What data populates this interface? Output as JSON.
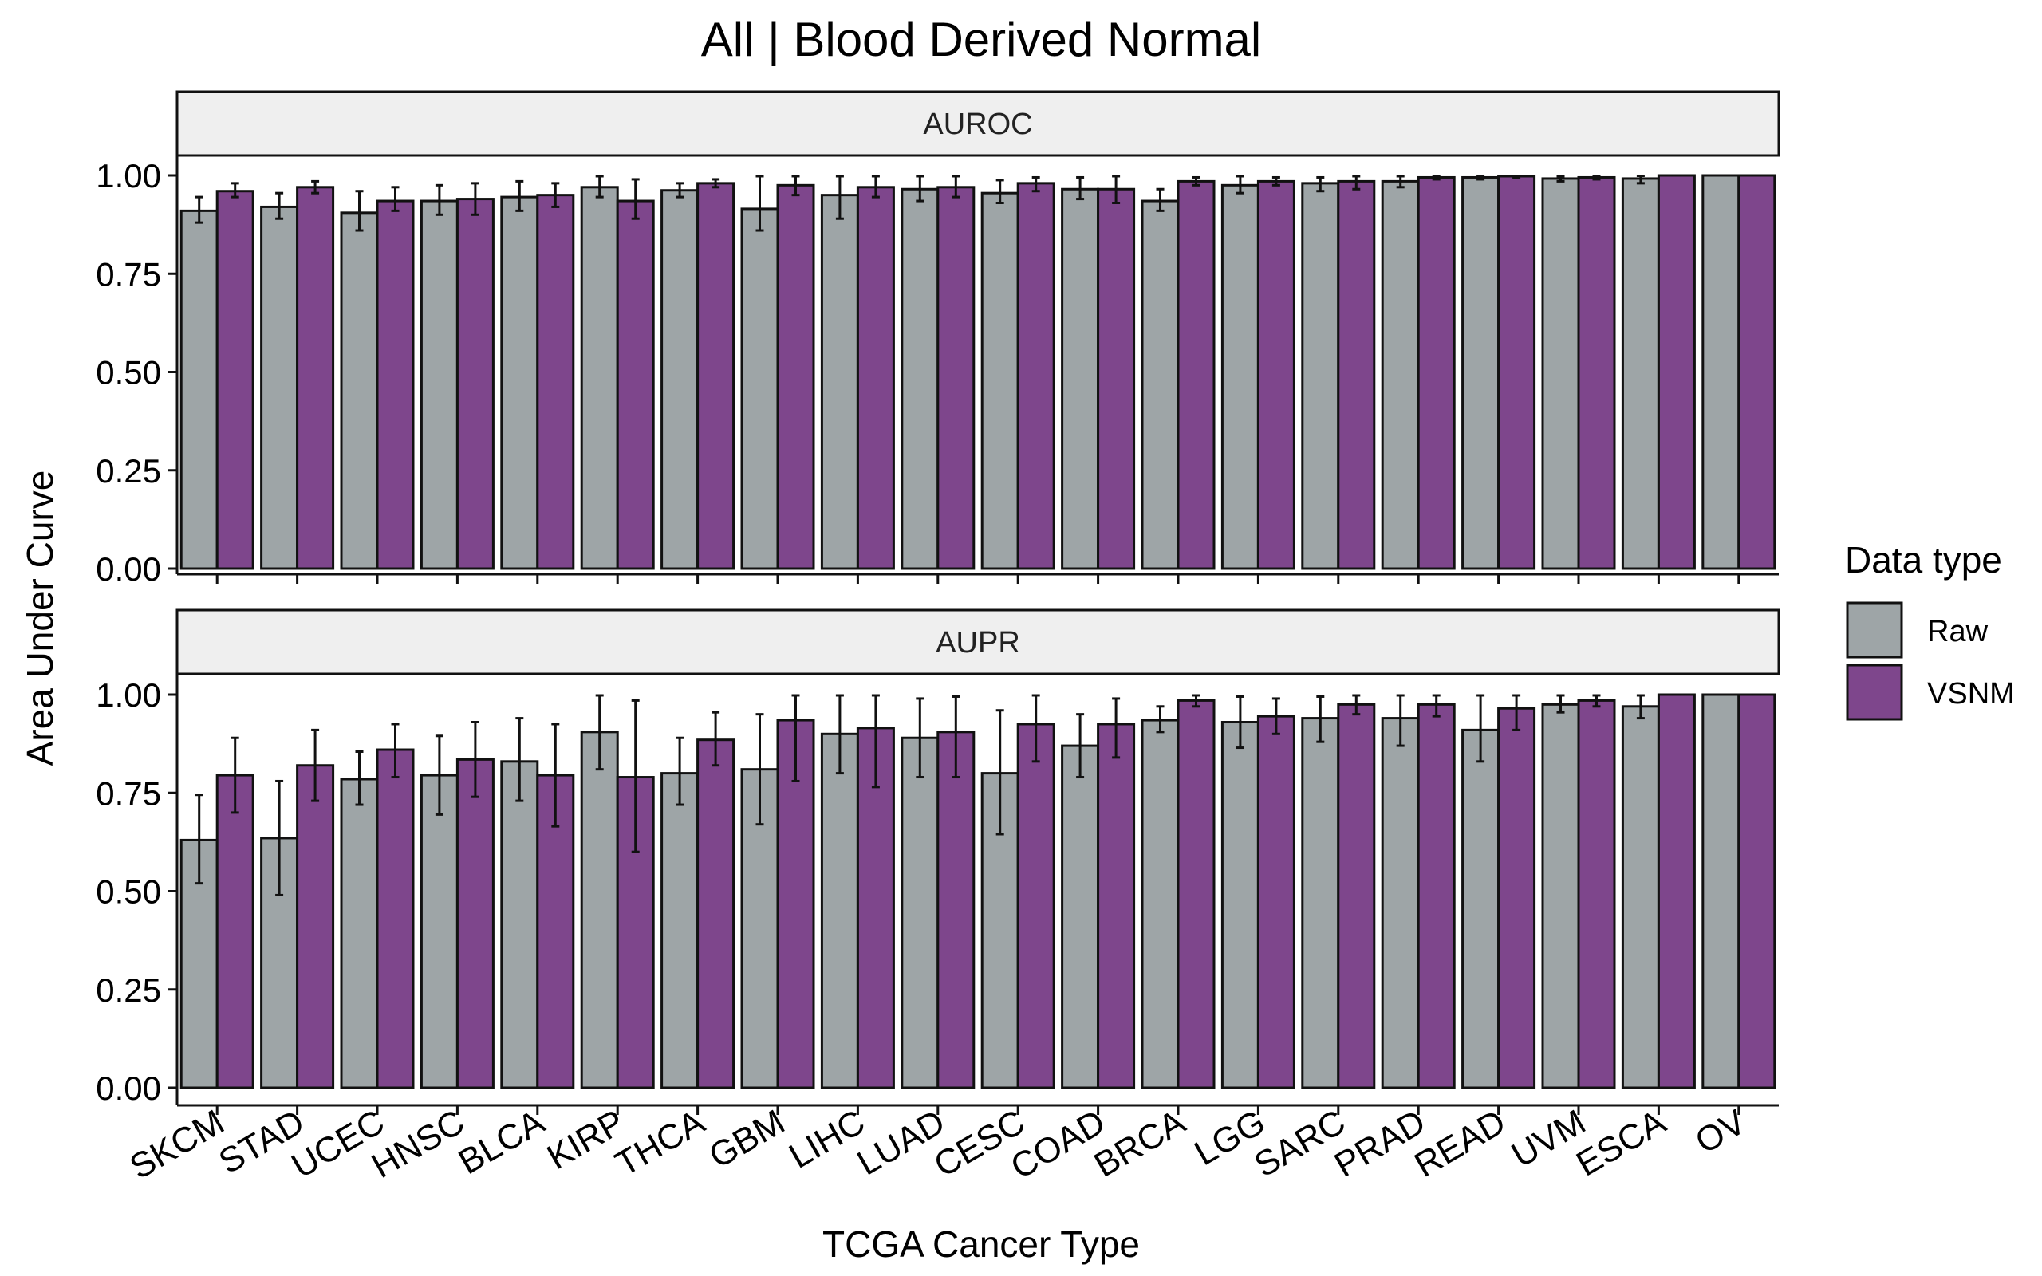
{
  "chart_data": {
    "type": "bar",
    "title": "All | Blood Derived Normal",
    "xlabel": "TCGA Cancer Type",
    "ylabel": "Area Under Curve",
    "ylim": [
      0,
      1.05
    ],
    "yticks": [
      "0.00",
      "0.25",
      "0.50",
      "0.75",
      "1.00"
    ],
    "ytick_values": [
      0,
      0.25,
      0.5,
      0.75,
      1.0
    ],
    "grid": false,
    "legend": {
      "title": "Data type",
      "placement": "right",
      "entries": [
        {
          "name": "Raw",
          "color": "#9ea5a7"
        },
        {
          "name": "VSNM",
          "color": "#7e468c"
        }
      ]
    },
    "categories": [
      "SKCM",
      "STAD",
      "UCEC",
      "HNSC",
      "BLCA",
      "KIRP",
      "THCA",
      "GBM",
      "LIHC",
      "LUAD",
      "CESC",
      "COAD",
      "BRCA",
      "LGG",
      "SARC",
      "PRAD",
      "READ",
      "UVM",
      "ESCA",
      "OV"
    ],
    "panels": [
      {
        "label": "AUROC",
        "series": [
          {
            "name": "Raw",
            "values": [
              0.91,
              0.92,
              0.905,
              0.935,
              0.945,
              0.97,
              0.962,
              0.915,
              0.95,
              0.965,
              0.955,
              0.965,
              0.935,
              0.975,
              0.98,
              0.985,
              0.995,
              0.992,
              0.992,
              1.0
            ],
            "errors": [
              [
                0.88,
                0.945
              ],
              [
                0.89,
                0.955
              ],
              [
                0.86,
                0.96
              ],
              [
                0.9,
                0.975
              ],
              [
                0.91,
                0.985
              ],
              [
                0.945,
                0.998
              ],
              [
                0.945,
                0.98
              ],
              [
                0.86,
                0.998
              ],
              [
                0.89,
                0.998
              ],
              [
                0.935,
                0.998
              ],
              [
                0.93,
                0.988
              ],
              [
                0.94,
                0.995
              ],
              [
                0.91,
                0.965
              ],
              [
                0.955,
                0.998
              ],
              [
                0.96,
                0.995
              ],
              [
                0.97,
                0.998
              ],
              [
                0.99,
                0.999
              ],
              [
                0.985,
                0.998
              ],
              [
                0.98,
                0.999
              ],
              [
                1.0,
                1.0
              ]
            ]
          },
          {
            "name": "VSNM",
            "values": [
              0.96,
              0.97,
              0.935,
              0.94,
              0.95,
              0.935,
              0.98,
              0.975,
              0.97,
              0.97,
              0.98,
              0.965,
              0.985,
              0.985,
              0.985,
              0.995,
              0.998,
              0.995,
              1.0,
              1.0
            ],
            "errors": [
              [
                0.945,
                0.98
              ],
              [
                0.955,
                0.985
              ],
              [
                0.91,
                0.97
              ],
              [
                0.9,
                0.98
              ],
              [
                0.92,
                0.98
              ],
              [
                0.89,
                0.99
              ],
              [
                0.97,
                0.99
              ],
              [
                0.95,
                0.998
              ],
              [
                0.945,
                0.998
              ],
              [
                0.945,
                0.998
              ],
              [
                0.96,
                0.995
              ],
              [
                0.93,
                0.998
              ],
              [
                0.975,
                0.995
              ],
              [
                0.975,
                0.995
              ],
              [
                0.965,
                0.998
              ],
              [
                0.99,
                0.999
              ],
              [
                0.995,
                0.999
              ],
              [
                0.99,
                0.999
              ],
              [
                1.0,
                1.0
              ],
              [
                1.0,
                1.0
              ]
            ]
          }
        ]
      },
      {
        "label": "AUPR",
        "series": [
          {
            "name": "Raw",
            "values": [
              0.63,
              0.635,
              0.785,
              0.795,
              0.83,
              0.905,
              0.8,
              0.81,
              0.9,
              0.89,
              0.8,
              0.87,
              0.935,
              0.93,
              0.94,
              0.94,
              0.91,
              0.975,
              0.97,
              1.0
            ],
            "errors": [
              [
                0.52,
                0.745
              ],
              [
                0.49,
                0.78
              ],
              [
                0.72,
                0.855
              ],
              [
                0.695,
                0.895
              ],
              [
                0.73,
                0.94
              ],
              [
                0.81,
                0.998
              ],
              [
                0.72,
                0.89
              ],
              [
                0.67,
                0.95
              ],
              [
                0.8,
                0.998
              ],
              [
                0.79,
                0.99
              ],
              [
                0.645,
                0.96
              ],
              [
                0.79,
                0.95
              ],
              [
                0.905,
                0.97
              ],
              [
                0.865,
                0.995
              ],
              [
                0.88,
                0.995
              ],
              [
                0.87,
                0.998
              ],
              [
                0.83,
                0.998
              ],
              [
                0.955,
                0.998
              ],
              [
                0.94,
                0.998
              ],
              [
                1.0,
                1.0
              ]
            ]
          },
          {
            "name": "VSNM",
            "values": [
              0.795,
              0.82,
              0.86,
              0.835,
              0.795,
              0.79,
              0.885,
              0.935,
              0.915,
              0.905,
              0.925,
              0.925,
              0.985,
              0.945,
              0.975,
              0.975,
              0.965,
              0.985,
              1.0,
              1.0
            ],
            "errors": [
              [
                0.7,
                0.89
              ],
              [
                0.73,
                0.91
              ],
              [
                0.79,
                0.925
              ],
              [
                0.74,
                0.93
              ],
              [
                0.665,
                0.925
              ],
              [
                0.6,
                0.985
              ],
              [
                0.82,
                0.955
              ],
              [
                0.78,
                0.998
              ],
              [
                0.765,
                0.998
              ],
              [
                0.79,
                0.995
              ],
              [
                0.83,
                0.998
              ],
              [
                0.84,
                0.99
              ],
              [
                0.97,
                0.998
              ],
              [
                0.9,
                0.99
              ],
              [
                0.95,
                0.998
              ],
              [
                0.945,
                0.998
              ],
              [
                0.91,
                0.998
              ],
              [
                0.97,
                0.998
              ],
              [
                1.0,
                1.0
              ],
              [
                1.0,
                1.0
              ]
            ]
          }
        ]
      }
    ]
  }
}
